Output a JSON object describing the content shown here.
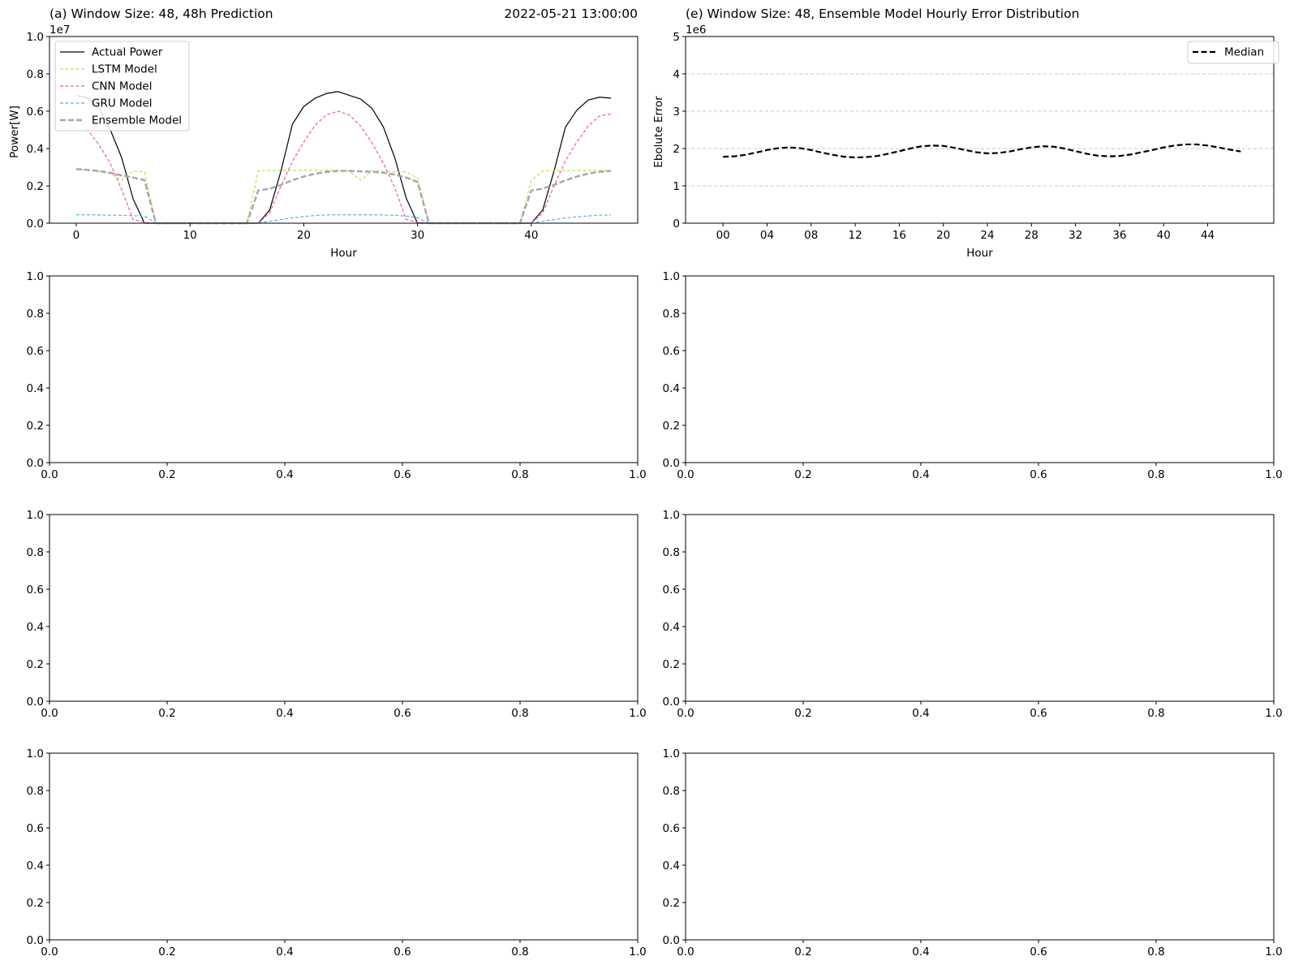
{
  "chart_data": [
    {
      "type": "line",
      "title": "(a) Window Size: 48, 48h Prediction",
      "title_right": "2022-05-21 13:00:00",
      "xlabel": "Hour",
      "ylabel": "Power[W]",
      "y_scale_label": "1e7",
      "y_multiplier": 10000000,
      "xlim": [
        -2.35,
        49.35
      ],
      "ylim": [
        0,
        10000000
      ],
      "xticks": [
        0,
        10,
        20,
        30,
        40
      ],
      "xtick_labels": [
        "0",
        "10",
        "20",
        "30",
        "40"
      ],
      "yticks": [
        0,
        2000000,
        4000000,
        6000000,
        8000000,
        10000000
      ],
      "ytick_labels": [
        "0.0",
        "0.2",
        "0.4",
        "0.6",
        "0.8",
        "1.0"
      ],
      "legend_position": "upper-left",
      "x": [
        0,
        1,
        2,
        3,
        4,
        5,
        6,
        7,
        8,
        9,
        10,
        11,
        12,
        13,
        14,
        15,
        16,
        17,
        18,
        19,
        20,
        21,
        22,
        23,
        24,
        25,
        26,
        27,
        28,
        29,
        30,
        31,
        32,
        33,
        34,
        35,
        36,
        37,
        38,
        39,
        40,
        41,
        42,
        43,
        44,
        45,
        46,
        47
      ],
      "series": [
        {
          "name": "Actual Power",
          "color": "#000000",
          "dash": "solid",
          "width": 1.2,
          "values": [
            6850000,
            6700000,
            6200000,
            5000000,
            3500000,
            1300000,
            0,
            0,
            0,
            0,
            0,
            0,
            0,
            0,
            0,
            0,
            0,
            700000,
            2800000,
            5300000,
            6250000,
            6700000,
            6950000,
            7050000,
            6850000,
            6650000,
            6150000,
            5150000,
            3500000,
            1350000,
            0,
            0,
            0,
            0,
            0,
            0,
            0,
            0,
            0,
            0,
            0,
            700000,
            2800000,
            5150000,
            6050000,
            6600000,
            6750000,
            6700000
          ]
        },
        {
          "name": "LSTM Model",
          "color": "#b5e35c",
          "dash": "4,2.5",
          "width": 1.2,
          "values": [
            2900000,
            2850000,
            2750000,
            2650000,
            2300000,
            2800000,
            2750000,
            0,
            0,
            0,
            0,
            0,
            0,
            0,
            0,
            0,
            2800000,
            2820000,
            2820000,
            2820000,
            2830000,
            2830000,
            2830000,
            2830000,
            2800000,
            2300000,
            2800000,
            2780000,
            2750000,
            2750000,
            2400000,
            0,
            0,
            0,
            0,
            0,
            0,
            0,
            0,
            0,
            2300000,
            2800000,
            2820000,
            2820000,
            2820000,
            2820000,
            2820000,
            2820000
          ]
        },
        {
          "name": "CNN Model",
          "color": "#ef5aa8",
          "dash": "4,2.5",
          "width": 1.2,
          "values": [
            5700000,
            5000000,
            4200000,
            3200000,
            1800000,
            200000,
            50000,
            0,
            0,
            0,
            0,
            0,
            0,
            0,
            0,
            0,
            0,
            550000,
            2000000,
            3300000,
            4350000,
            5250000,
            5800000,
            6000000,
            5800000,
            5200000,
            4300000,
            3200000,
            1900000,
            200000,
            50000,
            0,
            0,
            0,
            0,
            0,
            0,
            0,
            0,
            0,
            0,
            550000,
            2000000,
            3350000,
            4350000,
            5200000,
            5750000,
            5850000
          ]
        },
        {
          "name": "GRU Model",
          "color": "#58b4e0",
          "dash": "4,2.5",
          "width": 1.2,
          "values": [
            450000,
            450000,
            440000,
            430000,
            420000,
            400000,
            380000,
            0,
            0,
            0,
            0,
            0,
            0,
            0,
            0,
            0,
            0,
            100000,
            200000,
            280000,
            360000,
            410000,
            440000,
            450000,
            450000,
            450000,
            450000,
            440000,
            420000,
            380000,
            300000,
            0,
            0,
            0,
            0,
            0,
            0,
            0,
            0,
            0,
            0,
            100000,
            200000,
            280000,
            340000,
            390000,
            430000,
            440000
          ]
        },
        {
          "name": "Ensemble Model",
          "color": "#a6a6a6",
          "dash": "7,3",
          "width": 2.4,
          "values": [
            2900000,
            2850000,
            2800000,
            2700000,
            2550000,
            2450000,
            2300000,
            0,
            0,
            0,
            0,
            0,
            0,
            0,
            0,
            0,
            1750000,
            1850000,
            2050000,
            2300000,
            2500000,
            2650000,
            2750000,
            2800000,
            2800000,
            2780000,
            2750000,
            2700000,
            2600000,
            2450000,
            2200000,
            0,
            0,
            0,
            0,
            0,
            0,
            0,
            0,
            0,
            1750000,
            1850000,
            2050000,
            2300000,
            2500000,
            2650000,
            2750000,
            2800000
          ]
        }
      ]
    },
    {
      "type": "line",
      "title": "(e) Window Size: 48, Ensemble Model Hourly Error Distribution",
      "xlabel": "Hour",
      "ylabel": "Ebolute Error",
      "y_scale_label": "1e6",
      "y_multiplier": 1000000,
      "xlim": [
        -3.4,
        50
      ],
      "ylim": [
        0,
        5000000
      ],
      "xticks": [
        0,
        4,
        8,
        12,
        16,
        20,
        24,
        28,
        32,
        36,
        40,
        44
      ],
      "xtick_labels": [
        "00",
        "04",
        "08",
        "12",
        "16",
        "20",
        "24",
        "28",
        "32",
        "36",
        "40",
        "44"
      ],
      "yticks": [
        0,
        1000000,
        2000000,
        3000000,
        4000000,
        5000000
      ],
      "ytick_labels": [
        "0",
        "1",
        "2",
        "3",
        "4",
        "5"
      ],
      "grid": "horizontal dashed",
      "legend_position": "upper-right",
      "x": [
        0,
        1,
        2,
        3,
        4,
        5,
        6,
        7,
        8,
        9,
        10,
        11,
        12,
        13,
        14,
        15,
        16,
        17,
        18,
        19,
        20,
        21,
        22,
        23,
        24,
        25,
        26,
        27,
        28,
        29,
        30,
        31,
        32,
        33,
        34,
        35,
        36,
        37,
        38,
        39,
        40,
        41,
        42,
        43,
        44,
        45,
        46,
        47
      ],
      "series": [
        {
          "name": "Median",
          "color": "#000000",
          "dash": "7,3.5",
          "width": 2.2,
          "values": [
            1780000,
            1790000,
            1830000,
            1890000,
            1960000,
            2010000,
            2030000,
            2010000,
            1960000,
            1890000,
            1830000,
            1780000,
            1760000,
            1770000,
            1800000,
            1860000,
            1930000,
            2000000,
            2060000,
            2080000,
            2070000,
            2020000,
            1960000,
            1900000,
            1870000,
            1880000,
            1920000,
            1980000,
            2030000,
            2060000,
            2050000,
            2000000,
            1930000,
            1860000,
            1810000,
            1790000,
            1800000,
            1840000,
            1900000,
            1960000,
            2030000,
            2080000,
            2110000,
            2110000,
            2080000,
            2030000,
            1970000,
            1920000
          ]
        }
      ]
    },
    {
      "type": "line",
      "xlim": [
        0,
        1
      ],
      "ylim": [
        0,
        1
      ],
      "xtick_labels": [
        "0.0",
        "0.2",
        "0.4",
        "0.6",
        "0.8",
        "1.0"
      ],
      "ytick_labels": [
        "0.0",
        "0.2",
        "0.4",
        "0.6",
        "0.8",
        "1.0"
      ],
      "series": []
    },
    {
      "type": "line",
      "xlim": [
        0,
        1
      ],
      "ylim": [
        0,
        1
      ],
      "xtick_labels": [
        "0.0",
        "0.2",
        "0.4",
        "0.6",
        "0.8",
        "1.0"
      ],
      "ytick_labels": [
        "0.0",
        "0.2",
        "0.4",
        "0.6",
        "0.8",
        "1.0"
      ],
      "series": []
    },
    {
      "type": "line",
      "xlim": [
        0,
        1
      ],
      "ylim": [
        0,
        1
      ],
      "xtick_labels": [
        "0.0",
        "0.2",
        "0.4",
        "0.6",
        "0.8",
        "1.0"
      ],
      "ytick_labels": [
        "0.0",
        "0.2",
        "0.4",
        "0.6",
        "0.8",
        "1.0"
      ],
      "series": []
    },
    {
      "type": "line",
      "xlim": [
        0,
        1
      ],
      "ylim": [
        0,
        1
      ],
      "xtick_labels": [
        "0.0",
        "0.2",
        "0.4",
        "0.6",
        "0.8",
        "1.0"
      ],
      "ytick_labels": [
        "0.0",
        "0.2",
        "0.4",
        "0.6",
        "0.8",
        "1.0"
      ],
      "series": []
    },
    {
      "type": "line",
      "xlim": [
        0,
        1
      ],
      "ylim": [
        0,
        1
      ],
      "xtick_labels": [
        "0.0",
        "0.2",
        "0.4",
        "0.6",
        "0.8",
        "1.0"
      ],
      "ytick_labels": [
        "0.0",
        "0.2",
        "0.4",
        "0.6",
        "0.8",
        "1.0"
      ],
      "series": []
    },
    {
      "type": "line",
      "xlim": [
        0,
        1
      ],
      "ylim": [
        0,
        1
      ],
      "xtick_labels": [
        "0.0",
        "0.2",
        "0.4",
        "0.6",
        "0.8",
        "1.0"
      ],
      "ytick_labels": [
        "0.0",
        "0.2",
        "0.4",
        "0.6",
        "0.8",
        "1.0"
      ],
      "series": []
    }
  ]
}
